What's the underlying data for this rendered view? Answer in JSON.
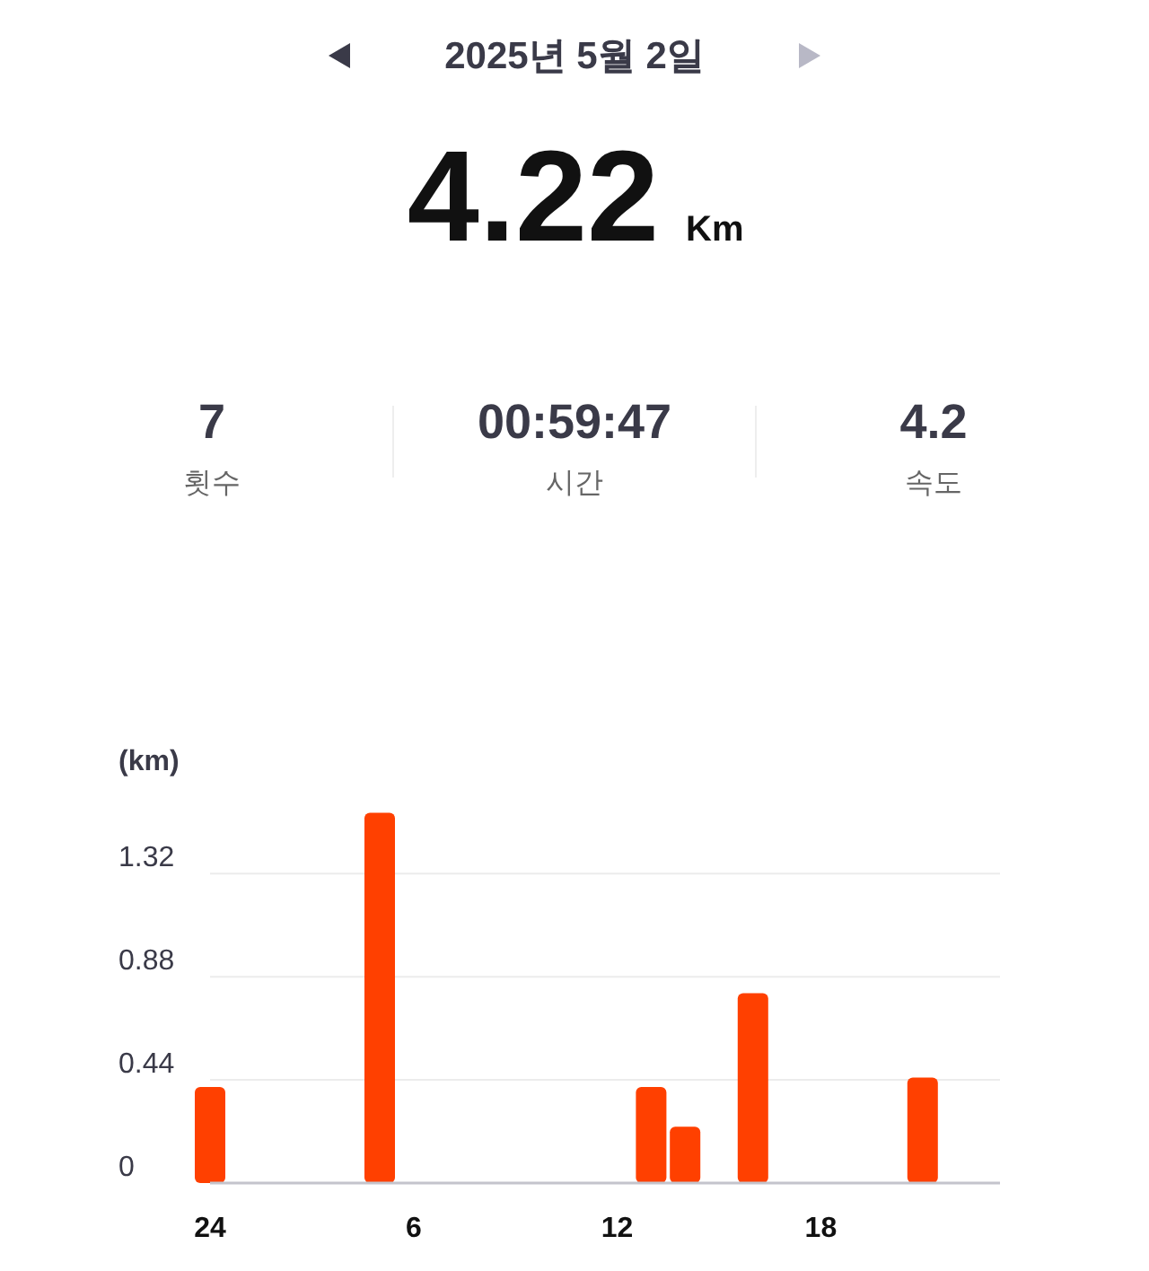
{
  "chart_data": {
    "type": "bar",
    "title": "2025년 5월 2일",
    "annotations": [
      "4.22",
      "Km",
      "7",
      "횟수",
      "00:59:47",
      "시간",
      "4.2",
      "속도"
    ],
    "ylabel": "(km)",
    "categories": [
      "24",
      null,
      null,
      null,
      null,
      null,
      "6",
      null,
      null,
      null,
      null,
      null,
      "12",
      null,
      null,
      null,
      null,
      null,
      "18",
      null,
      null,
      null,
      null,
      null
    ],
    "values": [
      0.41,
      null,
      null,
      null,
      null,
      1.58,
      null,
      null,
      null,
      null,
      null,
      null,
      null,
      0.41,
      0.24,
      null,
      0.81,
      null,
      null,
      null,
      null,
      0.45,
      null,
      null
    ],
    "color": "#ff4000",
    "ylim": [
      0,
      1.58
    ],
    "yticks": [
      0,
      0.44,
      0.88,
      1.32
    ],
    "grid": "y"
  }
}
